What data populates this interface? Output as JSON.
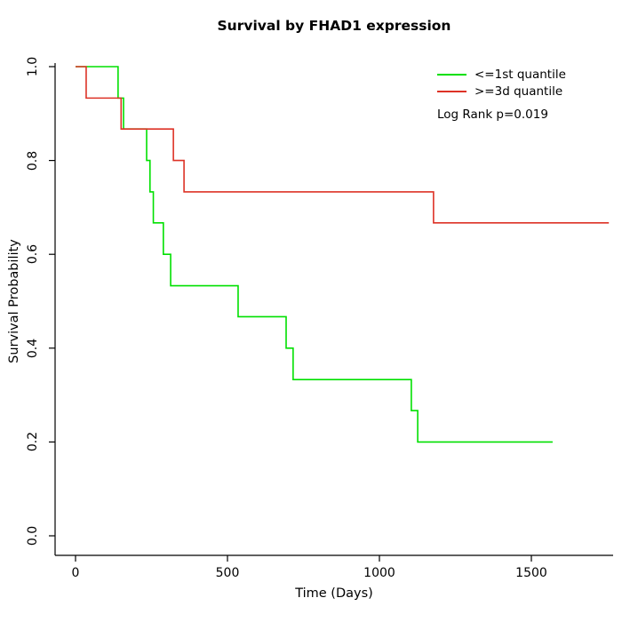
{
  "title": "Survival by FHAD1 expression",
  "x_axis": {
    "label": "Time (Days)",
    "ticks": [
      "0",
      "500",
      "1000",
      "1500"
    ],
    "tick_values": [
      0,
      500,
      1000,
      1500
    ]
  },
  "y_axis": {
    "label": "Survival Probability",
    "ticks": [
      "0.0",
      "0.2",
      "0.4",
      "0.6",
      "0.8",
      "1.0"
    ],
    "tick_values": [
      0,
      0.2,
      0.4,
      0.6,
      0.8,
      1.0
    ]
  },
  "legend": {
    "items": [
      {
        "label": "<=1st quantile",
        "color": "#00e000"
      },
      {
        "label": ">=3d quantile",
        "color": "#dd3226"
      }
    ],
    "pvalue_text": "Log Rank p=0.019"
  },
  "chart_data": {
    "type": "line",
    "subtype": "kaplan-meier-step",
    "title": "Survival by FHAD1 expression",
    "xlabel": "Time (Days)",
    "ylabel": "Survival Probability",
    "xlim": [
      0,
      1750
    ],
    "ylim": [
      0,
      1
    ],
    "grid": false,
    "legend_position": "top-right",
    "annotation": "Log Rank p=0.019",
    "series": [
      {
        "name": "<=1st quantile",
        "color": "#00e000",
        "start": [
          0,
          1.0
        ],
        "steps": [
          [
            140,
            0.933
          ],
          [
            158,
            0.867
          ],
          [
            234,
            0.8
          ],
          [
            245,
            0.733
          ],
          [
            256,
            0.667
          ],
          [
            289,
            0.6
          ],
          [
            313,
            0.533
          ],
          [
            535,
            0.467
          ],
          [
            693,
            0.4
          ],
          [
            716,
            0.333
          ],
          [
            1105,
            0.267
          ],
          [
            1126,
            0.2
          ]
        ],
        "end_time": 1570
      },
      {
        "name": ">=3d quantile",
        "color": "#dd3226",
        "start": [
          0,
          1.0
        ],
        "steps": [
          [
            35,
            0.933
          ],
          [
            150,
            0.867
          ],
          [
            322,
            0.8
          ],
          [
            357,
            0.733
          ],
          [
            1178,
            0.667
          ]
        ],
        "end_time": 1755
      }
    ]
  }
}
